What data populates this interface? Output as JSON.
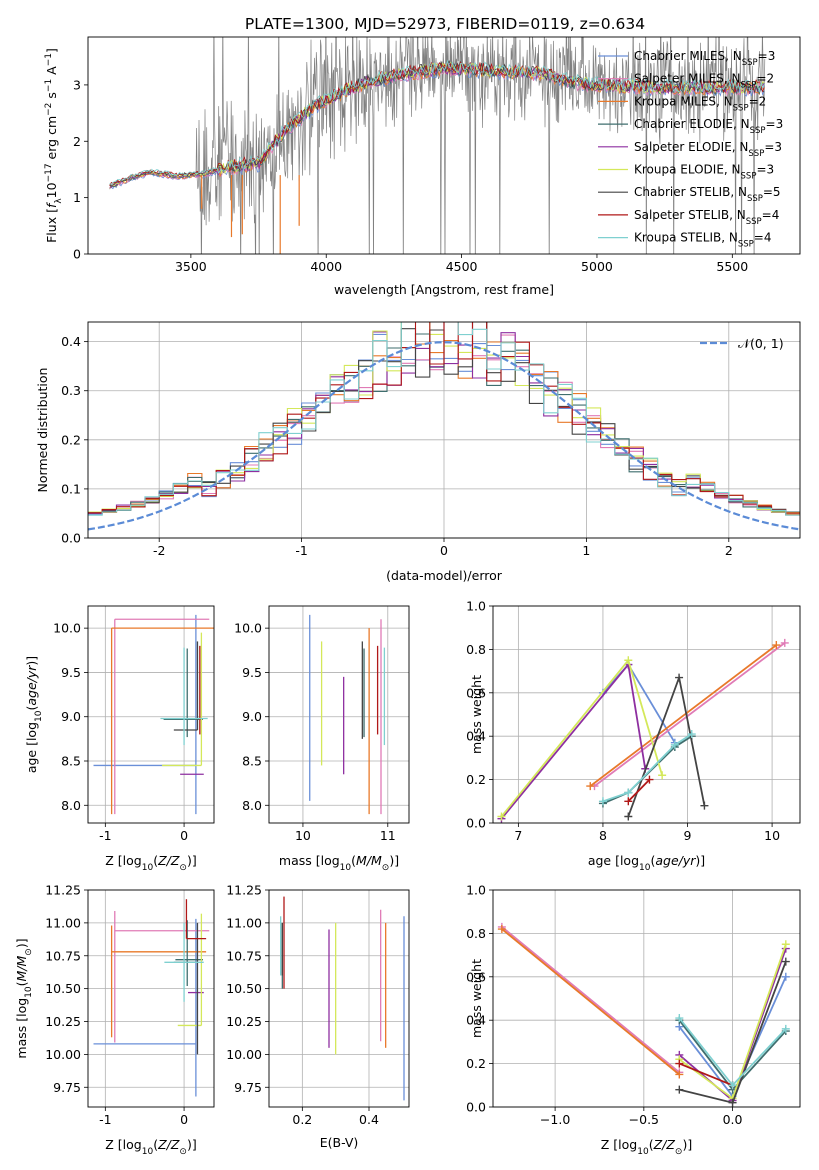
{
  "figure_title": "PLATE=1300, MJD=52973, FIBERID=0119, z=0.634",
  "colors": {
    "Chabrier MILES": "#6a8fd8",
    "Salpeter MILES": "#e07bb6",
    "Kroupa MILES": "#e8792a",
    "Chabrier ELODIE": "#3f6e6e",
    "Salpeter ELODIE": "#8e2fa0",
    "Kroupa ELODIE": "#d4e85a",
    "Chabrier STELIB": "#444444",
    "Salpeter STELIB": "#b01818",
    "Kroupa STELIB": "#7fd0d0",
    "data": "#808080",
    "normal": "#5b8bd6"
  },
  "chart_data": [
    {
      "id": "spectrum",
      "type": "line",
      "title": "PLATE=1300, MJD=52973, FIBERID=0119, z=0.634",
      "xlabel": "wavelength [Angstrom, rest frame]",
      "ylabel": "Flux [f_λ 10^-17 erg cm^-2 s^-1 A^-1]",
      "xlim": [
        3120,
        5750
      ],
      "ylim": [
        0,
        3.85
      ],
      "xticks": [
        3500,
        4000,
        4500,
        5000,
        5500
      ],
      "yticks": [
        0,
        1,
        2,
        3
      ],
      "grid": false,
      "legend_placement": "right",
      "legend": [
        {
          "label": "Chabrier MILES, N",
          "sub": "SSP",
          "suffix": "=3"
        },
        {
          "label": "Salpeter MILES, N",
          "sub": "SSP",
          "suffix": "=2"
        },
        {
          "label": "Kroupa MILES, N",
          "sub": "SSP",
          "suffix": "=2"
        },
        {
          "label": "Chabrier ELODIE, N",
          "sub": "SSP",
          "suffix": "=3"
        },
        {
          "label": "Salpeter ELODIE, N",
          "sub": "SSP",
          "suffix": "=3"
        },
        {
          "label": "Kroupa ELODIE, N",
          "sub": "SSP",
          "suffix": "=3"
        },
        {
          "label": "Chabrier STELIB, N",
          "sub": "SSP",
          "suffix": "=5"
        },
        {
          "label": "Salpeter STELIB, N",
          "sub": "SSP",
          "suffix": "=4"
        },
        {
          "label": "Kroupa STELIB, N",
          "sub": "SSP",
          "suffix": "=4"
        }
      ],
      "model_continuum": [
        [
          3200,
          1.2
        ],
        [
          3280,
          1.35
        ],
        [
          3350,
          1.45
        ],
        [
          3450,
          1.38
        ],
        [
          3550,
          1.42
        ],
        [
          3650,
          1.55
        ],
        [
          3750,
          1.6
        ],
        [
          3850,
          2.2
        ],
        [
          3950,
          2.6
        ],
        [
          4050,
          2.85
        ],
        [
          4150,
          3.05
        ],
        [
          4300,
          3.2
        ],
        [
          4450,
          3.3
        ],
        [
          4600,
          3.25
        ],
        [
          4800,
          3.2
        ],
        [
          4900,
          3.05
        ],
        [
          5000,
          3.0
        ],
        [
          5200,
          2.95
        ],
        [
          5400,
          2.95
        ],
        [
          5600,
          2.95
        ]
      ]
    },
    {
      "id": "residual_hist",
      "type": "histogram",
      "xlabel": "(data-model)/error",
      "ylabel": "Normed distribution",
      "xlim": [
        -2.5,
        2.5
      ],
      "ylim": [
        0,
        0.44
      ],
      "xticks": [
        -2,
        -1,
        0,
        1,
        2
      ],
      "yticks": [
        0.0,
        0.1,
        0.2,
        0.3,
        0.4
      ],
      "grid": true,
      "legend_placement": "top-right",
      "normal_curve_label": "𝒩(0, 1)",
      "bin_width": 0.1,
      "bin_start": -2.5
    },
    {
      "id": "age_vs_Z",
      "type": "errorbar",
      "xlabel": "Z [log10(Z/Z⊙)]",
      "ylabel": "age  [log10(age/yr)]",
      "xlim": [
        -1.22,
        0.38
      ],
      "ylim": [
        7.8,
        10.25
      ],
      "xticks": [
        -1,
        0
      ],
      "yticks": [
        8.0,
        8.5,
        9.0,
        9.5,
        10.0
      ],
      "grid": true,
      "points": [
        {
          "model": "Chabrier MILES",
          "x": 0.15,
          "xerr": [
            1.3,
            0.0
          ],
          "y": 8.45,
          "yerr": [
            0.55,
            1.7
          ]
        },
        {
          "model": "Salpeter MILES",
          "x": -0.88,
          "xerr": [
            0.0,
            1.2
          ],
          "y": 10.1,
          "yerr": [
            2.2,
            0.0
          ]
        },
        {
          "model": "Kroupa MILES",
          "x": -0.92,
          "xerr": [
            0.0,
            1.3
          ],
          "y": 10.0,
          "yerr": [
            2.1,
            0.0
          ]
        },
        {
          "model": "Chabrier ELODIE",
          "x": 0.04,
          "xerr": [
            0.3,
            0.2
          ],
          "y": 8.97,
          "yerr": [
            0.2,
            0.8
          ]
        },
        {
          "model": "Salpeter ELODIE",
          "x": 0.25,
          "xerr": [
            0.3,
            0.0
          ],
          "y": 8.35,
          "yerr": [
            0.0,
            0.0
          ]
        },
        {
          "model": "Kroupa ELODIE",
          "x": 0.22,
          "xerr": [
            0.5,
            0.0
          ],
          "y": 8.45,
          "yerr": [
            0.0,
            1.5
          ]
        },
        {
          "model": "Chabrier STELIB",
          "x": 0.17,
          "xerr": [
            0.3,
            0.0
          ],
          "y": 8.85,
          "yerr": [
            0.0,
            1.0
          ]
        },
        {
          "model": "Salpeter STELIB",
          "x": 0.2,
          "xerr": [
            0.0,
            0.0
          ],
          "y": 9.3,
          "yerr": [
            0.5,
            0.5
          ]
        },
        {
          "model": "Kroupa STELIB",
          "x": 0.0,
          "xerr": [
            0.3,
            0.3
          ],
          "y": 8.98,
          "yerr": [
            0.3,
            0.8
          ]
        }
      ]
    },
    {
      "id": "age_vs_mass",
      "type": "errorbar",
      "xlabel": "mass [log10(M/M⊙)]",
      "ylabel": "",
      "xlim": [
        9.6,
        11.25
      ],
      "ylim": [
        7.8,
        10.25
      ],
      "xticks": [
        10,
        11
      ],
      "yticks": [
        8.0,
        8.5,
        9.0,
        9.5,
        10.0
      ],
      "grid": true,
      "points": [
        {
          "model": "Chabrier MILES",
          "x": 10.08,
          "xerr": [
            0.0,
            0.0
          ],
          "y": 8.45,
          "yerr": [
            0.4,
            1.7
          ]
        },
        {
          "model": "Salpeter MILES",
          "x": 10.92,
          "xerr": [
            0.0,
            0.0
          ],
          "y": 10.1,
          "yerr": [
            2.2,
            0.0
          ]
        },
        {
          "model": "Kroupa MILES",
          "x": 10.78,
          "xerr": [
            0.0,
            0.0
          ],
          "y": 10.0,
          "yerr": [
            2.1,
            0.0
          ]
        },
        {
          "model": "Chabrier ELODIE",
          "x": 10.72,
          "xerr": [
            0.0,
            0.0
          ],
          "y": 8.97,
          "yerr": [
            0.2,
            0.8
          ]
        },
        {
          "model": "Salpeter ELODIE",
          "x": 10.48,
          "xerr": [
            0.0,
            0.0
          ],
          "y": 8.35,
          "yerr": [
            0.0,
            1.1
          ]
        },
        {
          "model": "Kroupa ELODIE",
          "x": 10.22,
          "xerr": [
            0.0,
            0.0
          ],
          "y": 8.45,
          "yerr": [
            0.0,
            1.4
          ]
        },
        {
          "model": "Chabrier STELIB",
          "x": 10.7,
          "xerr": [
            0.0,
            0.0
          ],
          "y": 8.85,
          "yerr": [
            0.1,
            1.0
          ]
        },
        {
          "model": "Salpeter STELIB",
          "x": 10.88,
          "xerr": [
            0.0,
            0.0
          ],
          "y": 9.3,
          "yerr": [
            0.5,
            0.5
          ]
        },
        {
          "model": "Kroupa STELIB",
          "x": 10.96,
          "xerr": [
            0.0,
            0.0
          ],
          "y": 8.98,
          "yerr": [
            0.3,
            0.8
          ]
        }
      ]
    },
    {
      "id": "weight_vs_age",
      "type": "line",
      "xlabel": "age  [log10(age/yr)]",
      "ylabel": "mass weight",
      "xlim": [
        6.7,
        10.33
      ],
      "ylim": [
        0,
        1.0
      ],
      "xticks": [
        7,
        8,
        9,
        10
      ],
      "yticks": [
        0.0,
        0.2,
        0.4,
        0.6,
        0.8,
        1.0
      ],
      "grid": true,
      "series": [
        {
          "model": "Chabrier MILES",
          "x": [
            8.0,
            8.3,
            8.85
          ],
          "y": [
            0.6,
            0.73,
            0.37
          ]
        },
        {
          "model": "Salpeter MILES",
          "x": [
            7.9,
            10.15
          ],
          "y": [
            0.17,
            0.83
          ]
        },
        {
          "model": "Kroupa MILES",
          "x": [
            7.85,
            10.05
          ],
          "y": [
            0.17,
            0.82
          ]
        },
        {
          "model": "Chabrier ELODIE",
          "x": [
            8.0,
            8.3,
            8.85,
            9.05
          ],
          "y": [
            0.09,
            0.14,
            0.35,
            0.4
          ]
        },
        {
          "model": "Salpeter ELODIE",
          "x": [
            6.8,
            8.3,
            8.5
          ],
          "y": [
            0.02,
            0.73,
            0.25
          ]
        },
        {
          "model": "Kroupa ELODIE",
          "x": [
            6.8,
            8.3,
            8.7
          ],
          "y": [
            0.03,
            0.75,
            0.22
          ]
        },
        {
          "model": "Chabrier STELIB",
          "x": [
            8.3,
            8.9,
            9.2
          ],
          "y": [
            0.03,
            0.67,
            0.08
          ]
        },
        {
          "model": "Salpeter STELIB",
          "x": [
            8.3,
            8.55
          ],
          "y": [
            0.1,
            0.2
          ]
        },
        {
          "model": "Kroupa STELIB",
          "x": [
            8.0,
            8.3,
            8.85,
            9.05
          ],
          "y": [
            0.1,
            0.14,
            0.36,
            0.41
          ]
        }
      ]
    },
    {
      "id": "mass_vs_Z",
      "type": "errorbar",
      "xlabel": "Z [log10(Z/Z⊙)]",
      "ylabel": "mass [log10(M/M⊙)]",
      "xlim": [
        -1.22,
        0.38
      ],
      "ylim": [
        9.6,
        11.25
      ],
      "xticks": [
        -1,
        0
      ],
      "yticks": [
        9.75,
        10.0,
        10.25,
        10.5,
        10.75,
        11.0,
        11.25
      ],
      "grid": true,
      "points": [
        {
          "model": "Chabrier MILES",
          "x": 0.15,
          "xerr": [
            1.3,
            0.0
          ],
          "y": 10.08,
          "yerr": [
            0.4,
            0.95
          ]
        },
        {
          "model": "Salpeter MILES",
          "x": -0.88,
          "xerr": [
            0.0,
            1.2
          ],
          "y": 10.94,
          "yerr": [
            0.85,
            0.15
          ]
        },
        {
          "model": "Kroupa MILES",
          "x": -0.92,
          "xerr": [
            0.0,
            1.2
          ],
          "y": 10.78,
          "yerr": [
            0.65,
            0.2
          ]
        },
        {
          "model": "Chabrier ELODIE",
          "x": 0.04,
          "xerr": [
            0.15,
            0.2
          ],
          "y": 10.72,
          "yerr": [
            0.2,
            0.3
          ]
        },
        {
          "model": "Salpeter ELODIE",
          "x": 0.25,
          "xerr": [
            0.2,
            0.0
          ],
          "y": 10.47,
          "yerr": [
            0.0,
            0.0
          ]
        },
        {
          "model": "Kroupa ELODIE",
          "x": 0.22,
          "xerr": [
            0.3,
            0.0
          ],
          "y": 10.22,
          "yerr": [
            0.0,
            0.85
          ]
        },
        {
          "model": "Chabrier STELIB",
          "x": 0.17,
          "xerr": [
            0.3,
            0.0
          ],
          "y": 10.7,
          "yerr": [
            0.7,
            0.3
          ]
        },
        {
          "model": "Salpeter STELIB",
          "x": 0.03,
          "xerr": [
            0.0,
            0.25
          ],
          "y": 10.88,
          "yerr": [
            0.0,
            0.3
          ]
        },
        {
          "model": "Kroupa STELIB",
          "x": 0.0,
          "xerr": [
            0.25,
            0.25
          ],
          "y": 10.7,
          "yerr": [
            0.3,
            0.3
          ]
        }
      ]
    },
    {
      "id": "mass_vs_ebv",
      "type": "errorbar",
      "xlabel": "E(B-V)",
      "ylabel": "",
      "xlim": [
        0.1,
        0.52
      ],
      "ylim": [
        9.6,
        11.25
      ],
      "xticks": [
        0.2,
        0.4
      ],
      "yticks": [
        9.75,
        10.0,
        10.25,
        10.5,
        10.75,
        11.0,
        11.25
      ],
      "grid": true,
      "points": [
        {
          "model": "Chabrier MILES",
          "x": 0.505,
          "xerr": [
            0,
            0
          ],
          "y": 10.3,
          "yerr": [
            0.65,
            0.75
          ]
        },
        {
          "model": "Salpeter MILES",
          "x": 0.435,
          "xerr": [
            0,
            0
          ],
          "y": 10.7,
          "yerr": [
            0.6,
            0.4
          ]
        },
        {
          "model": "Kroupa MILES",
          "x": 0.45,
          "xerr": [
            0,
            0
          ],
          "y": 10.5,
          "yerr": [
            0.45,
            0.5
          ]
        },
        {
          "model": "Chabrier ELODIE",
          "x": 0.14,
          "xerr": [
            0,
            0
          ],
          "y": 10.7,
          "yerr": [
            0.2,
            0.3
          ]
        },
        {
          "model": "Salpeter ELODIE",
          "x": 0.28,
          "xerr": [
            0,
            0
          ],
          "y": 10.5,
          "yerr": [
            0.45,
            0.45
          ]
        },
        {
          "model": "Kroupa ELODIE",
          "x": 0.3,
          "xerr": [
            0,
            0
          ],
          "y": 10.5,
          "yerr": [
            0.5,
            0.5
          ]
        },
        {
          "model": "Chabrier STELIB",
          "x": 0.14,
          "xerr": [
            0,
            0
          ],
          "y": 10.8,
          "yerr": [
            0.2,
            0.2
          ]
        },
        {
          "model": "Salpeter STELIB",
          "x": 0.145,
          "xerr": [
            0,
            0
          ],
          "y": 10.8,
          "yerr": [
            0.3,
            0.4
          ]
        },
        {
          "model": "Kroupa STELIB",
          "x": 0.135,
          "xerr": [
            0,
            0
          ],
          "y": 10.8,
          "yerr": [
            0.2,
            0.25
          ]
        }
      ]
    },
    {
      "id": "weight_vs_Z",
      "type": "line",
      "xlabel": "Z [log10(Z/Z⊙)]",
      "ylabel": "mass weight",
      "xlim": [
        -1.35,
        0.38
      ],
      "ylim": [
        0,
        1.0
      ],
      "xticks": [
        -1.0,
        -0.5,
        0.0
      ],
      "yticks": [
        0.0,
        0.2,
        0.4,
        0.6,
        0.8,
        1.0
      ],
      "grid": true,
      "series": [
        {
          "model": "Chabrier MILES",
          "x": [
            -0.3,
            0.0,
            0.3
          ],
          "y": [
            0.37,
            0.05,
            0.6
          ]
        },
        {
          "model": "Salpeter MILES",
          "x": [
            -1.3,
            -0.3
          ],
          "y": [
            0.83,
            0.16
          ]
        },
        {
          "model": "Kroupa MILES",
          "x": [
            -1.3,
            -0.3
          ],
          "y": [
            0.82,
            0.15
          ]
        },
        {
          "model": "Chabrier ELODIE",
          "x": [
            -0.3,
            0.0,
            0.3
          ],
          "y": [
            0.4,
            0.08,
            0.35
          ]
        },
        {
          "model": "Salpeter ELODIE",
          "x": [
            -0.3,
            0.0,
            0.3
          ],
          "y": [
            0.24,
            0.03,
            0.73
          ]
        },
        {
          "model": "Kroupa ELODIE",
          "x": [
            -0.3,
            0.0,
            0.3
          ],
          "y": [
            0.22,
            0.04,
            0.75
          ]
        },
        {
          "model": "Chabrier STELIB",
          "x": [
            -0.3,
            0.0,
            0.3
          ],
          "y": [
            0.08,
            0.02,
            0.67
          ]
        },
        {
          "model": "Salpeter STELIB",
          "x": [
            -0.3,
            0.0
          ],
          "y": [
            0.2,
            0.1
          ]
        },
        {
          "model": "Kroupa STELIB",
          "x": [
            -0.3,
            0.0,
            0.3
          ],
          "y": [
            0.41,
            0.1,
            0.36
          ]
        }
      ]
    }
  ]
}
